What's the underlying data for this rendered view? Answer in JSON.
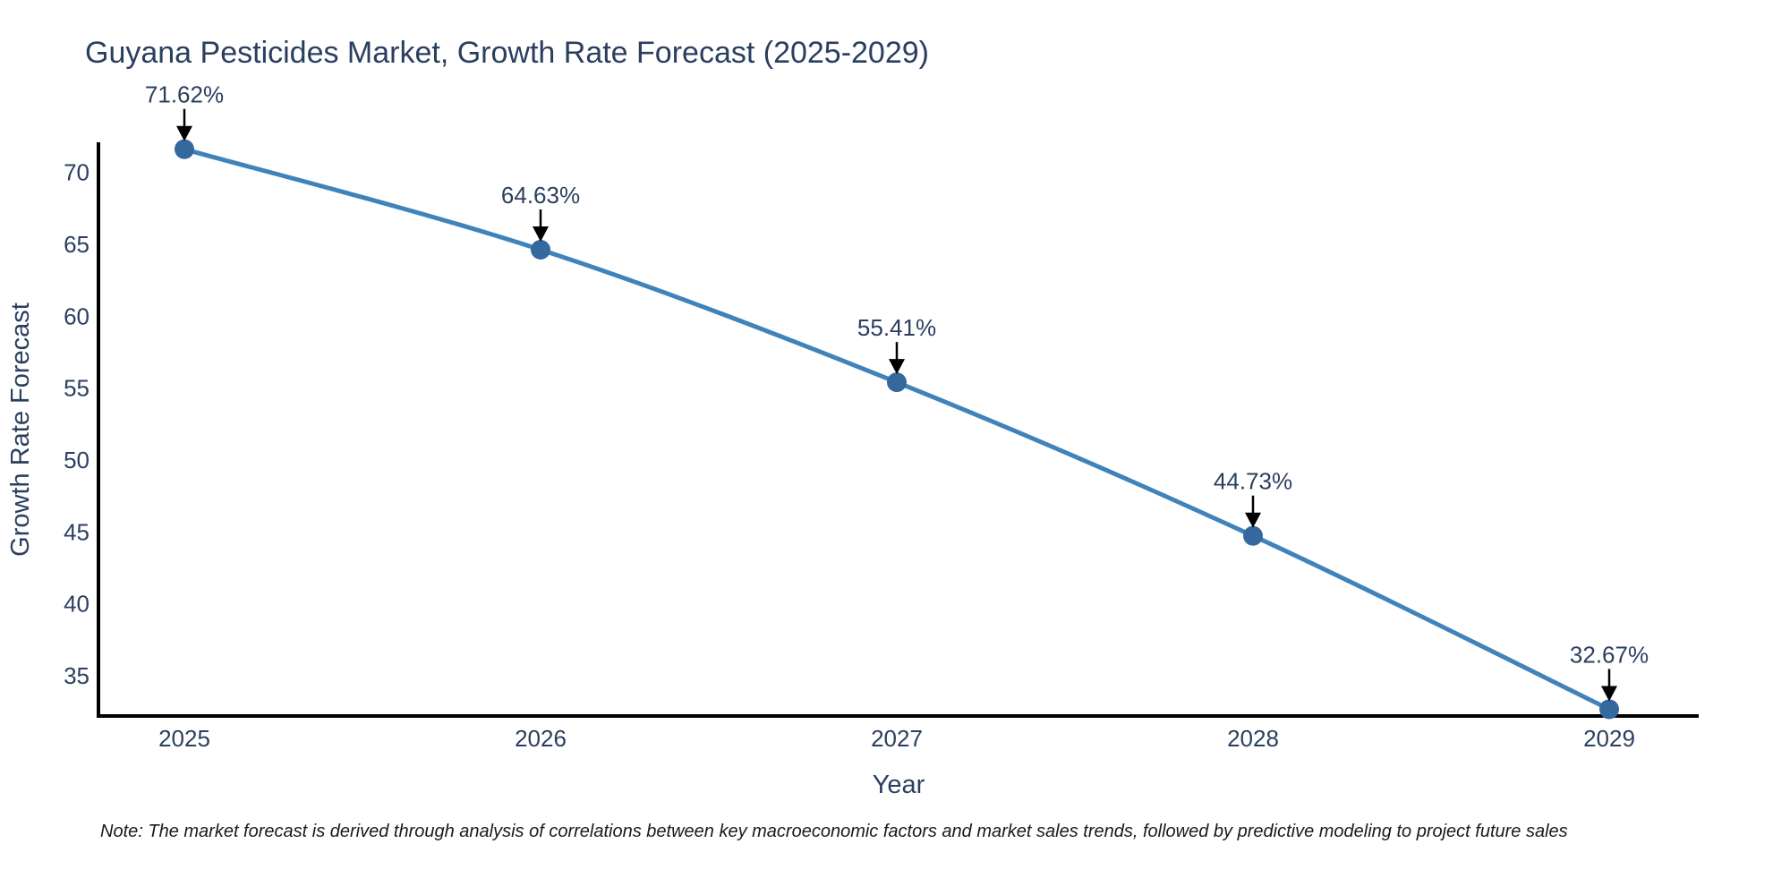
{
  "note": "Note: The market forecast is derived through analysis of correlations between key macroeconomic factors and market sales trends, followed by predictive modeling to project future sales",
  "chart_data": {
    "type": "line",
    "title": "Guyana Pesticides Market, Growth Rate Forecast (2025-2029)",
    "xlabel": "Year",
    "ylabel": "Growth Rate Forecast",
    "x": [
      2025,
      2026,
      2027,
      2028,
      2029
    ],
    "values": [
      71.62,
      64.63,
      55.41,
      44.73,
      32.67
    ],
    "point_labels": [
      "71.62%",
      "64.63%",
      "55.41%",
      "44.73%",
      "32.67%"
    ],
    "x_tick_labels": [
      "2025",
      "2026",
      "2027",
      "2028",
      "2029"
    ],
    "y_ticks": [
      35,
      40,
      45,
      50,
      55,
      60,
      65,
      70
    ],
    "ylim": [
      32.2,
      72.1
    ],
    "grid": false,
    "legend": "none",
    "line_shape": "spline",
    "colors": {
      "line": "#4083bb",
      "marker": "#35699e",
      "axis": "#000000",
      "annotation_arrow": "#000000",
      "text": "#2a3f5f"
    }
  }
}
